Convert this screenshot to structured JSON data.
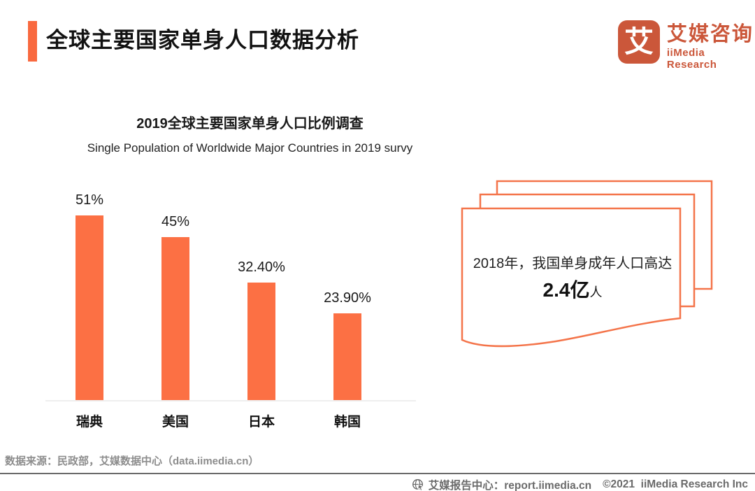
{
  "header": {
    "title": "全球主要国家单身人口数据分析",
    "logo": {
      "icon_glyph": "艾",
      "name_cn": "艾媒咨询",
      "name_en": "iiMedia Research"
    }
  },
  "chart_data": {
    "type": "bar",
    "title": "2019全球主要国家单身人口比例调查",
    "subtitle": "Single Population of Worldwide Major Countries in 2019 survy",
    "categories": [
      "瑞典",
      "美国",
      "日本",
      "韩国"
    ],
    "values": [
      51,
      45,
      32.4,
      23.9
    ],
    "value_labels": [
      "51%",
      "45%",
      "32.40%",
      "23.90%"
    ],
    "xlabel": "",
    "ylabel": "",
    "ylim": [
      0,
      55
    ],
    "grid": false,
    "legend": "none",
    "bar_color": "#FC7044"
  },
  "callout": {
    "line1": "2018年，我国单身成年人口高达",
    "value": "2.4亿",
    "unit": "人"
  },
  "source_line": "数据来源：民政部，艾媒数据中心（data.iimedia.cn）",
  "footer": {
    "report_center": "艾媒报告中心：report.iimedia.cn",
    "copyright": "©2021  iiMedia Research Inc"
  },
  "colors": {
    "accent_orange": "#F9693F",
    "bar_orange": "#FC7044",
    "callout_border": "#F4744A",
    "logo_orange": "#CB573A",
    "axis_line": "#EFEFEF",
    "source_text": "#8D8D8D",
    "footer_text": "#6B6B6B"
  }
}
